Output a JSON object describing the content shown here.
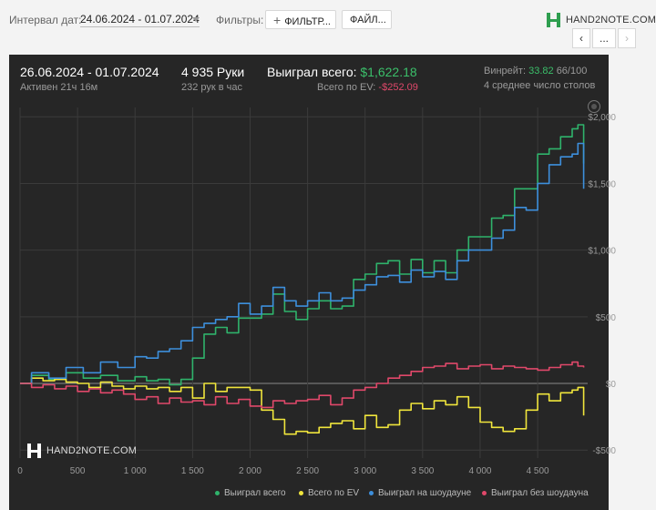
{
  "filters_bar": {
    "interval_label": "Интервал дат:",
    "interval_value": "24.06.2024 - 01.07.2024",
    "filters_label": "Фильтры:",
    "filters_button": "ФИЛЬТР...",
    "files_button": "ФАЙЛ...",
    "logo_text": "HAND2NOTE.COM",
    "nav_prev": "‹",
    "nav_more": "...",
    "nav_next": "›"
  },
  "stats": {
    "session_dates": "26.06.2024 - 01.07.2024",
    "active_time": "Активен 21ч 16м",
    "hands": "4 935 Руки",
    "hands_per_hour": "232 рук в час",
    "won_total_label": "Выиграл всего:",
    "won_total_value": "$1,622.18",
    "ev_label": "Всего по EV:",
    "ev_value": "-$252.09",
    "winrate_label": "Винрейт:",
    "winrate_value": "33.82",
    "winrate_hands": "66/100",
    "avg_tables": "4 среднее число столов"
  },
  "colors": {
    "won_total": "#2fb36b",
    "ev": "#f0e53c",
    "showdown": "#3d8fdc",
    "non_showdown": "#e0486a"
  },
  "watermark": "HAND2NOTE.COM",
  "chart_data": {
    "type": "line",
    "xlabel": "",
    "ylabel": "",
    "xlim": [
      0,
      4935
    ],
    "ylim": [
      -560,
      2070
    ],
    "x_ticks": [
      0,
      500,
      1000,
      1500,
      2000,
      2500,
      3000,
      3500,
      4000,
      4500
    ],
    "x_tick_labels": [
      "0",
      "500",
      "1 000",
      "1 500",
      "2 000",
      "2 500",
      "3 000",
      "3 500",
      "4 000",
      "4 500"
    ],
    "y_ticks": [
      -500,
      0,
      500,
      1000,
      1500,
      2000
    ],
    "y_tick_labels": [
      "-$500",
      "$0",
      "$500",
      "$1,000",
      "$1,500",
      "$2,000"
    ],
    "grid": true,
    "legend": "bottom-right",
    "series": [
      {
        "name": "Выиграл всего",
        "color": "#2fb36b",
        "x": [
          0,
          100,
          250,
          400,
          550,
          700,
          850,
          1000,
          1100,
          1200,
          1300,
          1400,
          1500,
          1600,
          1700,
          1800,
          1900,
          2000,
          2100,
          2200,
          2300,
          2400,
          2500,
          2600,
          2700,
          2800,
          2900,
          3000,
          3100,
          3200,
          3300,
          3400,
          3500,
          3600,
          3700,
          3800,
          3900,
          4000,
          4100,
          4200,
          4300,
          4400,
          4500,
          4600,
          4700,
          4800,
          4850,
          4900
        ],
        "y": [
          0,
          60,
          30,
          80,
          40,
          60,
          20,
          50,
          20,
          30,
          -10,
          30,
          190,
          370,
          420,
          380,
          490,
          490,
          520,
          670,
          540,
          480,
          560,
          620,
          560,
          580,
          780,
          820,
          900,
          920,
          820,
          930,
          830,
          920,
          830,
          1000,
          1100,
          1100,
          1240,
          1260,
          1460,
          1460,
          1720,
          1760,
          1850,
          1910,
          1940,
          1650
        ]
      },
      {
        "name": "Всего по EV",
        "color": "#f0e53c",
        "x": [
          0,
          100,
          200,
          300,
          400,
          500,
          600,
          700,
          800,
          900,
          1000,
          1100,
          1200,
          1300,
          1400,
          1500,
          1600,
          1700,
          1800,
          1900,
          2000,
          2100,
          2200,
          2300,
          2400,
          2500,
          2600,
          2700,
          2800,
          2900,
          3000,
          3100,
          3200,
          3300,
          3400,
          3500,
          3600,
          3700,
          3800,
          3900,
          4000,
          4100,
          4200,
          4300,
          4400,
          4500,
          4600,
          4700,
          4800,
          4850,
          4900
        ],
        "y": [
          0,
          40,
          20,
          30,
          10,
          0,
          -30,
          10,
          -20,
          -40,
          -20,
          -40,
          -30,
          -60,
          -30,
          -110,
          0,
          -60,
          -30,
          -30,
          -50,
          -200,
          -270,
          -380,
          -360,
          -370,
          -330,
          -300,
          -280,
          -340,
          -240,
          -330,
          -310,
          -200,
          -150,
          -190,
          -130,
          -160,
          -100,
          -180,
          -290,
          -330,
          -360,
          -340,
          -200,
          -80,
          -130,
          -70,
          -50,
          -30,
          -240
        ]
      },
      {
        "name": "Выиграл на шоудауне",
        "color": "#3d8fdc",
        "x": [
          0,
          100,
          250,
          400,
          550,
          700,
          850,
          1000,
          1100,
          1200,
          1300,
          1400,
          1500,
          1600,
          1700,
          1800,
          1900,
          2000,
          2100,
          2200,
          2300,
          2400,
          2500,
          2600,
          2700,
          2800,
          2900,
          3000,
          3100,
          3200,
          3300,
          3400,
          3500,
          3600,
          3700,
          3800,
          3900,
          4000,
          4100,
          4200,
          4300,
          4400,
          4500,
          4600,
          4700,
          4800,
          4850,
          4900
        ],
        "y": [
          0,
          80,
          40,
          120,
          80,
          160,
          120,
          200,
          190,
          240,
          260,
          320,
          420,
          450,
          480,
          500,
          600,
          520,
          580,
          720,
          620,
          580,
          620,
          680,
          620,
          640,
          700,
          740,
          800,
          810,
          760,
          850,
          800,
          840,
          780,
          920,
          1000,
          1000,
          1090,
          1150,
          1320,
          1300,
          1500,
          1640,
          1700,
          1720,
          1800,
          1460
        ]
      },
      {
        "name": "Выиграл без шоудауна",
        "color": "#e0486a",
        "x": [
          0,
          100,
          200,
          300,
          400,
          500,
          600,
          700,
          800,
          900,
          1000,
          1100,
          1200,
          1300,
          1400,
          1500,
          1600,
          1700,
          1800,
          1900,
          2000,
          2100,
          2200,
          2300,
          2400,
          2500,
          2600,
          2700,
          2800,
          2900,
          3000,
          3100,
          3200,
          3300,
          3400,
          3500,
          3600,
          3700,
          3800,
          3900,
          4000,
          4100,
          4200,
          4300,
          4400,
          4500,
          4600,
          4700,
          4800,
          4850,
          4900
        ],
        "y": [
          0,
          -30,
          -10,
          -40,
          -20,
          -60,
          -40,
          -70,
          -50,
          -80,
          -120,
          -100,
          -150,
          -110,
          -140,
          -130,
          -160,
          -100,
          -150,
          -120,
          -170,
          -180,
          -130,
          -150,
          -130,
          -120,
          -90,
          -160,
          -110,
          -50,
          -30,
          0,
          40,
          60,
          90,
          120,
          130,
          150,
          110,
          130,
          140,
          110,
          130,
          120,
          110,
          100,
          120,
          140,
          160,
          130,
          120
        ]
      }
    ]
  }
}
